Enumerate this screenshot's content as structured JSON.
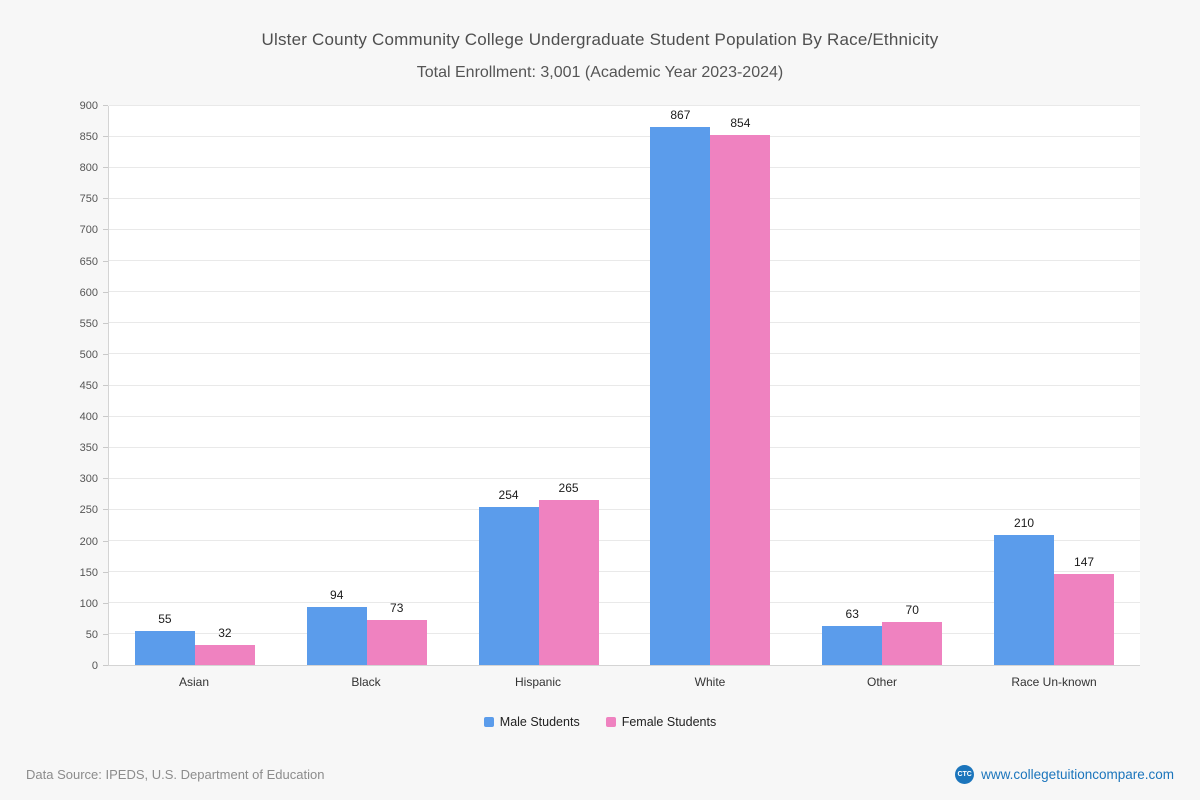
{
  "header": {
    "title": "Ulster County Community College Undergraduate Student Population By Race/Ethnicity",
    "subtitle": "Total Enrollment: 3,001 (Academic Year 2023-2024)"
  },
  "chart_data": {
    "type": "bar",
    "title": "Ulster County Community College Undergraduate Student Population By Race/Ethnicity",
    "subtitle": "Total Enrollment: 3,001 (Academic Year 2023-2024)",
    "categories": [
      "Asian",
      "Black",
      "Hispanic",
      "White",
      "Other",
      "Race Un-known"
    ],
    "series": [
      {
        "name": "Male Students",
        "color": "#5b9ceb",
        "values": [
          55,
          94,
          254,
          867,
          63,
          210
        ]
      },
      {
        "name": "Female Students",
        "color": "#ef82c0",
        "values": [
          32,
          73,
          265,
          854,
          70,
          147
        ]
      }
    ],
    "ylim": [
      0,
      900
    ],
    "ytick_step": 50,
    "grid": true,
    "legend_position": "bottom",
    "xlabel": "",
    "ylabel": ""
  },
  "footer": {
    "source": "Data Source: IPEDS, U.S. Department of Education",
    "logo": "CTC",
    "site": "www.collegetuitioncompare.com"
  }
}
